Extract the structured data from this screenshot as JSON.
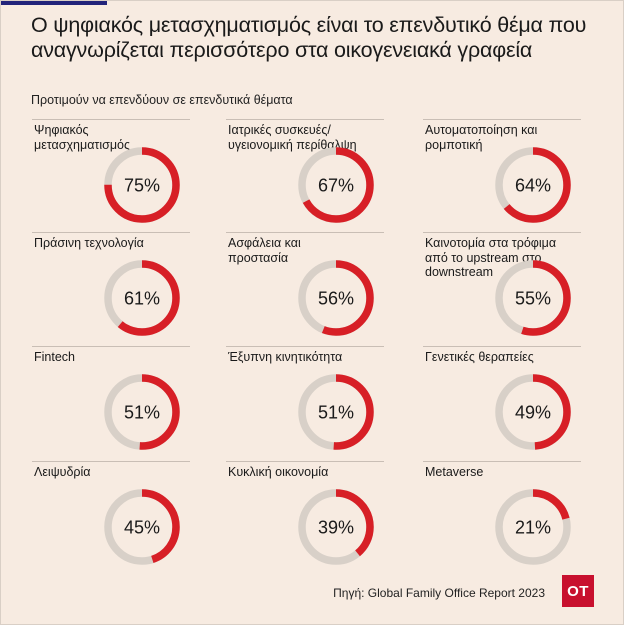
{
  "header": {
    "title": "Ο ψηφιακός μετασχηματισμός είναι το επενδυτικό θέμα που αναγνωρίζεται περισσότερο στα οικογενειακά γραφεία",
    "subtitle": "Προτιμούν να επενδύουν σε επενδυτικά θέματα"
  },
  "colors": {
    "background": "#f7ebe1",
    "filled": "#d71f26",
    "track": "#d8d0c8",
    "brand": "#c8102e"
  },
  "chart_data": {
    "type": "pie",
    "subtype": "donut-grid",
    "title": "Ο ψηφιακός μετασχηματισμός είναι το επενδυτικό θέμα που αναγνωρίζεται περισσότερο στα οικογενειακά γραφεία",
    "subtitle": "Προτιμούν να επενδύουν σε επενδυτικά θέματα",
    "unit": "%",
    "items": [
      {
        "label": "Ψηφιακός μετασχηματισμός",
        "value": 75,
        "text": "75%"
      },
      {
        "label": "Ιατρικές συσκευές/ υγειονομική περίθαλψη",
        "value": 67,
        "text": "67%"
      },
      {
        "label": "Αυτοματοποίηση και ρομποτική",
        "value": 64,
        "text": "64%"
      },
      {
        "label": "Πράσινη τεχνολογία",
        "value": 61,
        "text": "61%"
      },
      {
        "label": "Ασφάλεια και προστασία",
        "value": 56,
        "text": "56%"
      },
      {
        "label": "Καινοτομία στα τρόφιμα από το upstream στο downstream",
        "value": 55,
        "text": "55%"
      },
      {
        "label": "Fintech",
        "value": 51,
        "text": "51%"
      },
      {
        "label": "Έξυπνη κινητικότητα",
        "value": 51,
        "text": "51%"
      },
      {
        "label": "Γενετικές θεραπείες",
        "value": 49,
        "text": "49%"
      },
      {
        "label": "Λειψυδρία",
        "value": 45,
        "text": "45%"
      },
      {
        "label": "Κυκλική οικονομία",
        "value": 39,
        "text": "39%"
      },
      {
        "label": "Metaverse",
        "value": 21,
        "text": "21%"
      }
    ]
  },
  "footer": {
    "source": "Πηγή: Global Family Office Report 2023",
    "logo_text": "OT"
  }
}
